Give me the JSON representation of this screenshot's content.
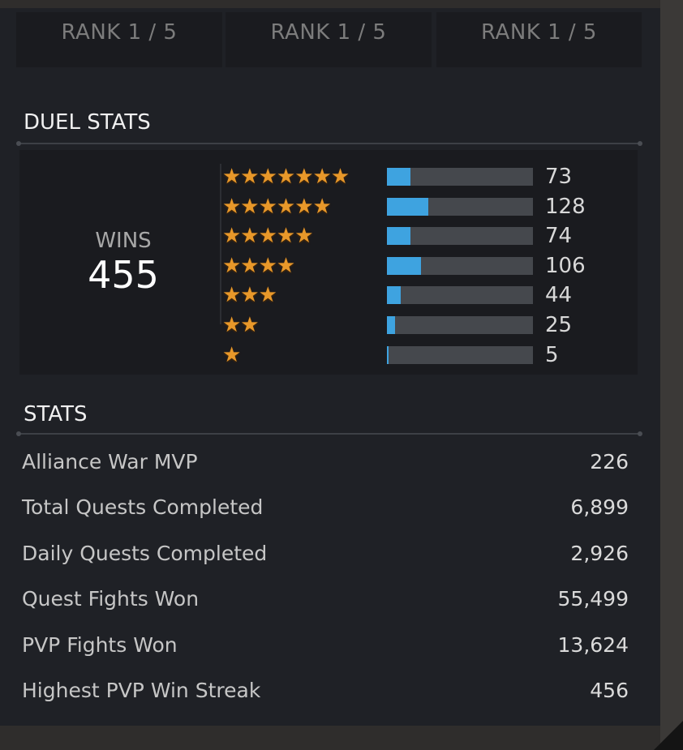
{
  "ranks": [
    "RANK 1 / 5",
    "RANK 1 / 5",
    "RANK 1 / 5"
  ],
  "duel": {
    "title": "DUEL STATS",
    "wins_label": "WINS",
    "wins_value": "455",
    "rows": [
      {
        "stars": "★★★★★★★",
        "value": "73",
        "fraction": 0.16
      },
      {
        "stars": "★★★★★★",
        "value": "128",
        "fraction": 0.281
      },
      {
        "stars": "★★★★★",
        "value": "74",
        "fraction": 0.163
      },
      {
        "stars": "★★★★",
        "value": "106",
        "fraction": 0.233
      },
      {
        "stars": "★★★",
        "value": "44",
        "fraction": 0.097
      },
      {
        "stars": "★★",
        "value": "25",
        "fraction": 0.055
      },
      {
        "stars": "★",
        "value": "5",
        "fraction": 0.011
      }
    ]
  },
  "stats": {
    "title": "STATS",
    "rows": [
      {
        "label": "Alliance War MVP",
        "value": "226"
      },
      {
        "label": "Total Quests Completed",
        "value": "6,899"
      },
      {
        "label": "Daily Quests Completed",
        "value": "2,926"
      },
      {
        "label": "Quest Fights Won",
        "value": "55,499"
      },
      {
        "label": "PVP Fights Won",
        "value": "13,624"
      },
      {
        "label": "Highest PVP Win Streak",
        "value": "456"
      }
    ]
  },
  "colors": {
    "bar_fill": "#3ea3e0",
    "star": "#e8982a"
  }
}
